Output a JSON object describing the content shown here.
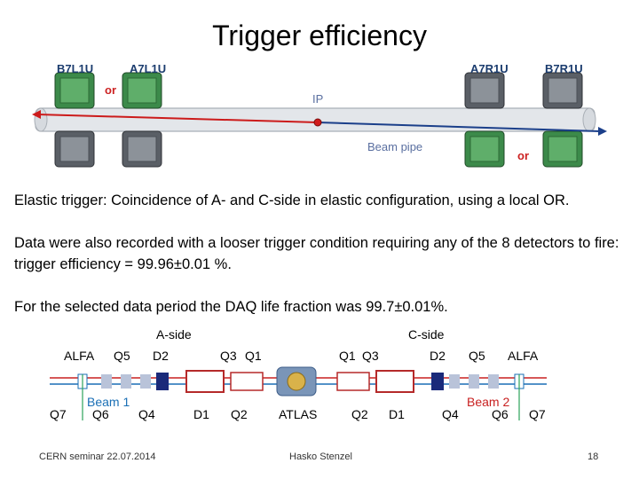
{
  "slide": {
    "title": "Trigger efficiency",
    "paragraphs": [
      "Elastic trigger: Coincidence of A- and C-side in elastic configuration, using a local OR.",
      "Data were also recorded with a looser trigger condition requiring any of the 8 detectors to fire: trigger efficiency = 99.96±0.01 %.",
      "For the selected data period the DAQ life fraction was 99.7±0.01%."
    ]
  },
  "detector_figure": {
    "stations": [
      "B7L1U",
      "A7L1U",
      "A7R1U",
      "B7R1U"
    ],
    "or_left": "or",
    "or_right": "or",
    "ip_label": "IP",
    "beam_pipe_label": "Beam pipe",
    "colors": {
      "detector_green": "#3c8a4a",
      "ip_dot": "#d11b1b",
      "arrow_red": "#cc1b1b",
      "arrow_blue": "#1b3f8a",
      "or_text": "#cc2222"
    }
  },
  "layout_figure": {
    "a_side": "A-side",
    "c_side": "C-side",
    "top_labels": [
      "ALFA",
      "Q5",
      "D2",
      "Q3",
      "Q1",
      "Q1",
      "Q3",
      "D2",
      "Q5",
      "ALFA"
    ],
    "bottom_labels": [
      "Q7",
      "Q6",
      "Q4",
      "D1",
      "Q2",
      "ATLAS",
      "Q2",
      "D1",
      "Q4",
      "Q6",
      "Q7"
    ],
    "beam1": "Beam 1",
    "beam2": "Beam 2",
    "colors": {
      "beam1": "#1a6fb5",
      "beam2": "#c82020",
      "magnet_red": "#b52a2a",
      "magnet_blue": "#1a2a7a"
    }
  },
  "footer": {
    "left": "CERN seminar 22.07.2014",
    "center": "Hasko Stenzel",
    "page": "18"
  }
}
